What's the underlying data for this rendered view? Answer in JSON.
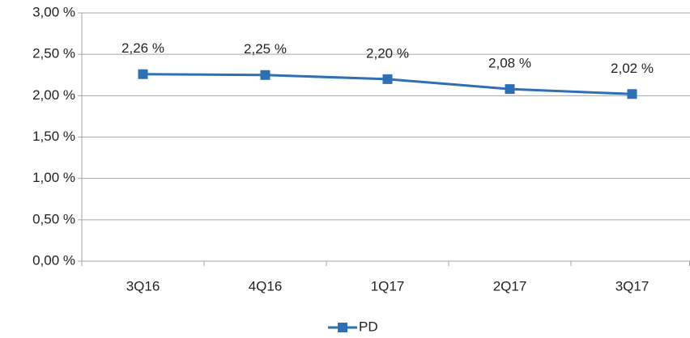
{
  "chart_data": {
    "type": "line",
    "categories": [
      "3Q16",
      "4Q16",
      "1Q17",
      "2Q17",
      "3Q17"
    ],
    "series": [
      {
        "name": "PD",
        "color": "#2f6fb3",
        "values": [
          2.26,
          2.25,
          2.2,
          2.08,
          2.02
        ],
        "value_labels": [
          "2,26 %",
          "2,25 %",
          "2,20 %",
          "2,08 %",
          "2,02 %"
        ]
      }
    ],
    "ylim": [
      0,
      3
    ],
    "yticks": [
      {
        "value": 0,
        "label": "0,00 %"
      },
      {
        "value": 0.5,
        "label": "0,50 %"
      },
      {
        "value": 1,
        "label": "1,00 %"
      },
      {
        "value": 1.5,
        "label": "1,50 %"
      },
      {
        "value": 2,
        "label": "2,00 %"
      },
      {
        "value": 2.5,
        "label": "2,50 %"
      },
      {
        "value": 3,
        "label": "3,00 %"
      }
    ],
    "grid": true,
    "legend": "bottom"
  }
}
